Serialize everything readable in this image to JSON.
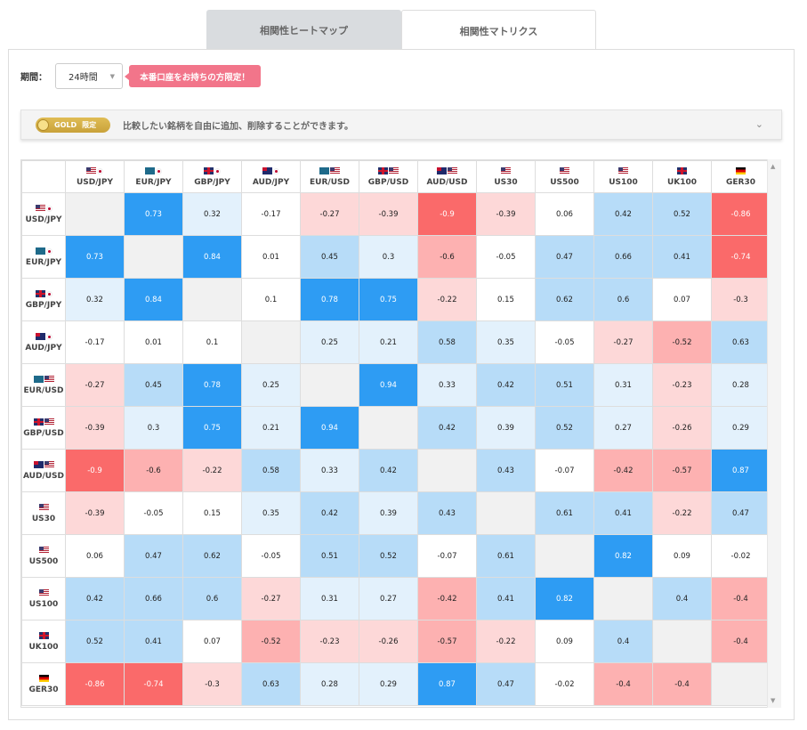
{
  "tabs": [
    {
      "label": "相関性ヒートマップ",
      "active": false
    },
    {
      "label": "相関性マトリクス",
      "active": true
    }
  ],
  "period": {
    "label": "期間：",
    "value": "24時間"
  },
  "promo": {
    "label": "本番口座をお持ちの方限定！"
  },
  "gold_bar": {
    "badge": "GOLD",
    "badge_sub": "限定",
    "text": "比較したい銘柄を自由に追加、削除することができます。"
  },
  "colors": {
    "strong_pos": "#2e9cf3",
    "pos": "#b7dcf8",
    "weak_pos": "#e3f1fc",
    "strong_neg": "#fa6a6a",
    "neg": "#fdb1b1",
    "weak_neg": "#fdd8d8",
    "diag": "#f1f1f1"
  },
  "matrix": {
    "symbols": [
      {
        "label": "USD/JPY",
        "flags": [
          "us",
          "jp"
        ]
      },
      {
        "label": "EUR/JPY",
        "flags": [
          "eu",
          "jp"
        ]
      },
      {
        "label": "GBP/JPY",
        "flags": [
          "gb",
          "jp"
        ]
      },
      {
        "label": "AUD/JPY",
        "flags": [
          "au",
          "jp"
        ]
      },
      {
        "label": "EUR/USD",
        "flags": [
          "eu",
          "us"
        ]
      },
      {
        "label": "GBP/USD",
        "flags": [
          "gb",
          "us"
        ]
      },
      {
        "label": "AUD/USD",
        "flags": [
          "au",
          "us"
        ]
      },
      {
        "label": "US30",
        "flags": [
          "us"
        ]
      },
      {
        "label": "US500",
        "flags": [
          "us"
        ]
      },
      {
        "label": "US100",
        "flags": [
          "us"
        ]
      },
      {
        "label": "UK100",
        "flags": [
          "gb"
        ]
      },
      {
        "label": "GER30",
        "flags": [
          "de"
        ]
      }
    ],
    "values": [
      [
        "",
        "0.73",
        "0.32",
        "-0.17",
        "-0.27",
        "-0.39",
        "-0.9",
        "-0.39",
        "0.06",
        "0.42",
        "0.52",
        "-0.86"
      ],
      [
        "0.73",
        "",
        "0.84",
        "0.01",
        "0.45",
        "0.3",
        "-0.6",
        "-0.05",
        "0.47",
        "0.66",
        "0.41",
        "-0.74"
      ],
      [
        "0.32",
        "0.84",
        "",
        "0.1",
        "0.78",
        "0.75",
        "-0.22",
        "0.15",
        "0.62",
        "0.6",
        "0.07",
        "-0.3"
      ],
      [
        "-0.17",
        "0.01",
        "0.1",
        "",
        "0.25",
        "0.21",
        "0.58",
        "0.35",
        "-0.05",
        "-0.27",
        "-0.52",
        "0.63"
      ],
      [
        "-0.27",
        "0.45",
        "0.78",
        "0.25",
        "",
        "0.94",
        "0.33",
        "0.42",
        "0.51",
        "0.31",
        "-0.23",
        "0.28"
      ],
      [
        "-0.39",
        "0.3",
        "0.75",
        "0.21",
        "0.94",
        "",
        "0.42",
        "0.39",
        "0.52",
        "0.27",
        "-0.26",
        "0.29"
      ],
      [
        "-0.9",
        "-0.6",
        "-0.22",
        "0.58",
        "0.33",
        "0.42",
        "",
        "0.43",
        "-0.07",
        "-0.42",
        "-0.57",
        "0.87"
      ],
      [
        "-0.39",
        "-0.05",
        "0.15",
        "0.35",
        "0.42",
        "0.39",
        "0.43",
        "",
        "0.61",
        "0.41",
        "-0.22",
        "0.47"
      ],
      [
        "0.06",
        "0.47",
        "0.62",
        "-0.05",
        "0.51",
        "0.52",
        "-0.07",
        "0.61",
        "",
        "0.82",
        "0.09",
        "-0.02"
      ],
      [
        "0.42",
        "0.66",
        "0.6",
        "-0.27",
        "0.31",
        "0.27",
        "-0.42",
        "0.41",
        "0.82",
        "",
        "0.4",
        "-0.4"
      ],
      [
        "0.52",
        "0.41",
        "0.07",
        "-0.52",
        "-0.23",
        "-0.26",
        "-0.57",
        "-0.22",
        "0.09",
        "0.4",
        "",
        "-0.4"
      ],
      [
        "-0.86",
        "-0.74",
        "-0.3",
        "0.63",
        "0.28",
        "0.29",
        "0.87",
        "0.47",
        "-0.02",
        "-0.4",
        "-0.4",
        ""
      ]
    ]
  }
}
